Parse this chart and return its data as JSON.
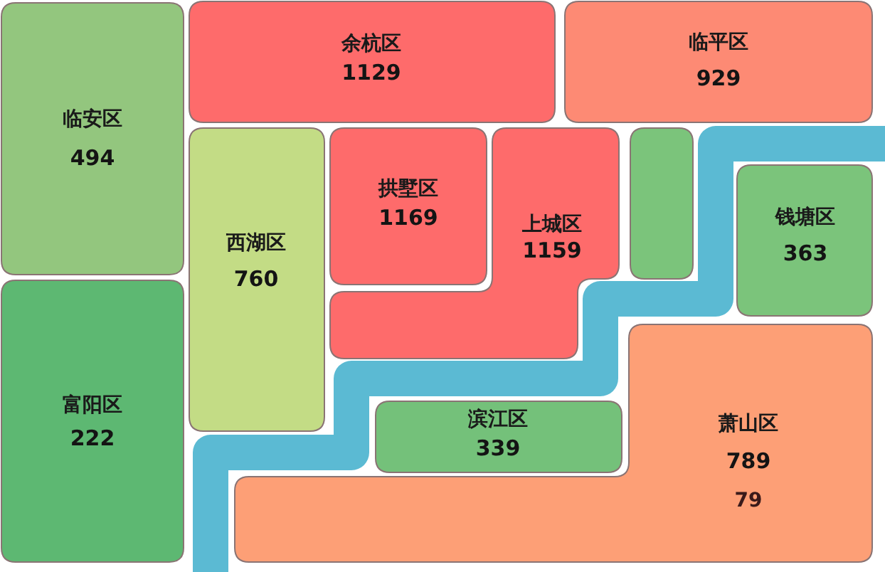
{
  "chart_data": {
    "type": "other",
    "categories": [
      "临安区",
      "余杭区",
      "临平区",
      "西湖区",
      "拱墅区",
      "上城区",
      "钱塘区",
      "富阳区",
      "萧山区",
      "滨江区"
    ],
    "values": [
      494,
      1129,
      929,
      760,
      1169,
      1159,
      363,
      222,
      789,
      339
    ],
    "colors": [
      "#93c67e",
      "#fe6b6b",
      "#fd8a74",
      "#c3dc85",
      "#fe6b6b",
      "#fe6b6b",
      "#7bc47b",
      "#5db872",
      "#fd9f76",
      "#74c17a"
    ],
    "data_labels": true,
    "annotations": [
      "79"
    ]
  }
}
